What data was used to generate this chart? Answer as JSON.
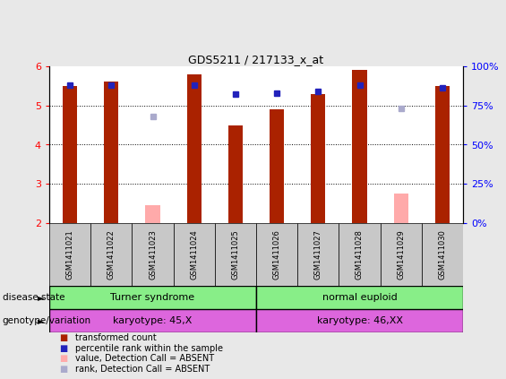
{
  "title": "GDS5211 / 217133_x_at",
  "samples": [
    "GSM1411021",
    "GSM1411022",
    "GSM1411023",
    "GSM1411024",
    "GSM1411025",
    "GSM1411026",
    "GSM1411027",
    "GSM1411028",
    "GSM1411029",
    "GSM1411030"
  ],
  "red_values": [
    5.5,
    5.6,
    null,
    5.8,
    4.5,
    4.9,
    5.3,
    5.9,
    null,
    5.5
  ],
  "pink_values": [
    null,
    null,
    2.45,
    null,
    null,
    null,
    null,
    null,
    2.75,
    null
  ],
  "blue_values": [
    88,
    88,
    null,
    88,
    82,
    83,
    84,
    88,
    null,
    86
  ],
  "lightblue_values": [
    null,
    null,
    68,
    null,
    null,
    null,
    null,
    null,
    73,
    null
  ],
  "ylim_left": [
    2,
    6
  ],
  "ylim_right": [
    0,
    100
  ],
  "yticks_left": [
    2,
    3,
    4,
    5,
    6
  ],
  "yticks_right": [
    0,
    25,
    50,
    75,
    100
  ],
  "ytick_labels_right": [
    "0%",
    "25%",
    "50%",
    "75%",
    "100%"
  ],
  "bar_baseline": 2,
  "red_color": "#aa2200",
  "pink_color": "#ffaaaa",
  "blue_color": "#2222bb",
  "lightblue_color": "#aaaacc",
  "bg_color": "#e8e8e8",
  "plot_bg": "#ffffff",
  "disease_state_labels": [
    "Turner syndrome",
    "normal euploid"
  ],
  "disease_state_color": "#88ee88",
  "genotype_labels": [
    "karyotype: 45,X",
    "karyotype: 46,XX"
  ],
  "genotype_color": "#dd66dd",
  "bar_width": 0.35,
  "legend_items": [
    {
      "label": "transformed count",
      "color": "#aa2200"
    },
    {
      "label": "percentile rank within the sample",
      "color": "#2222bb"
    },
    {
      "label": "value, Detection Call = ABSENT",
      "color": "#ffaaaa"
    },
    {
      "label": "rank, Detection Call = ABSENT",
      "color": "#aaaacc"
    }
  ]
}
